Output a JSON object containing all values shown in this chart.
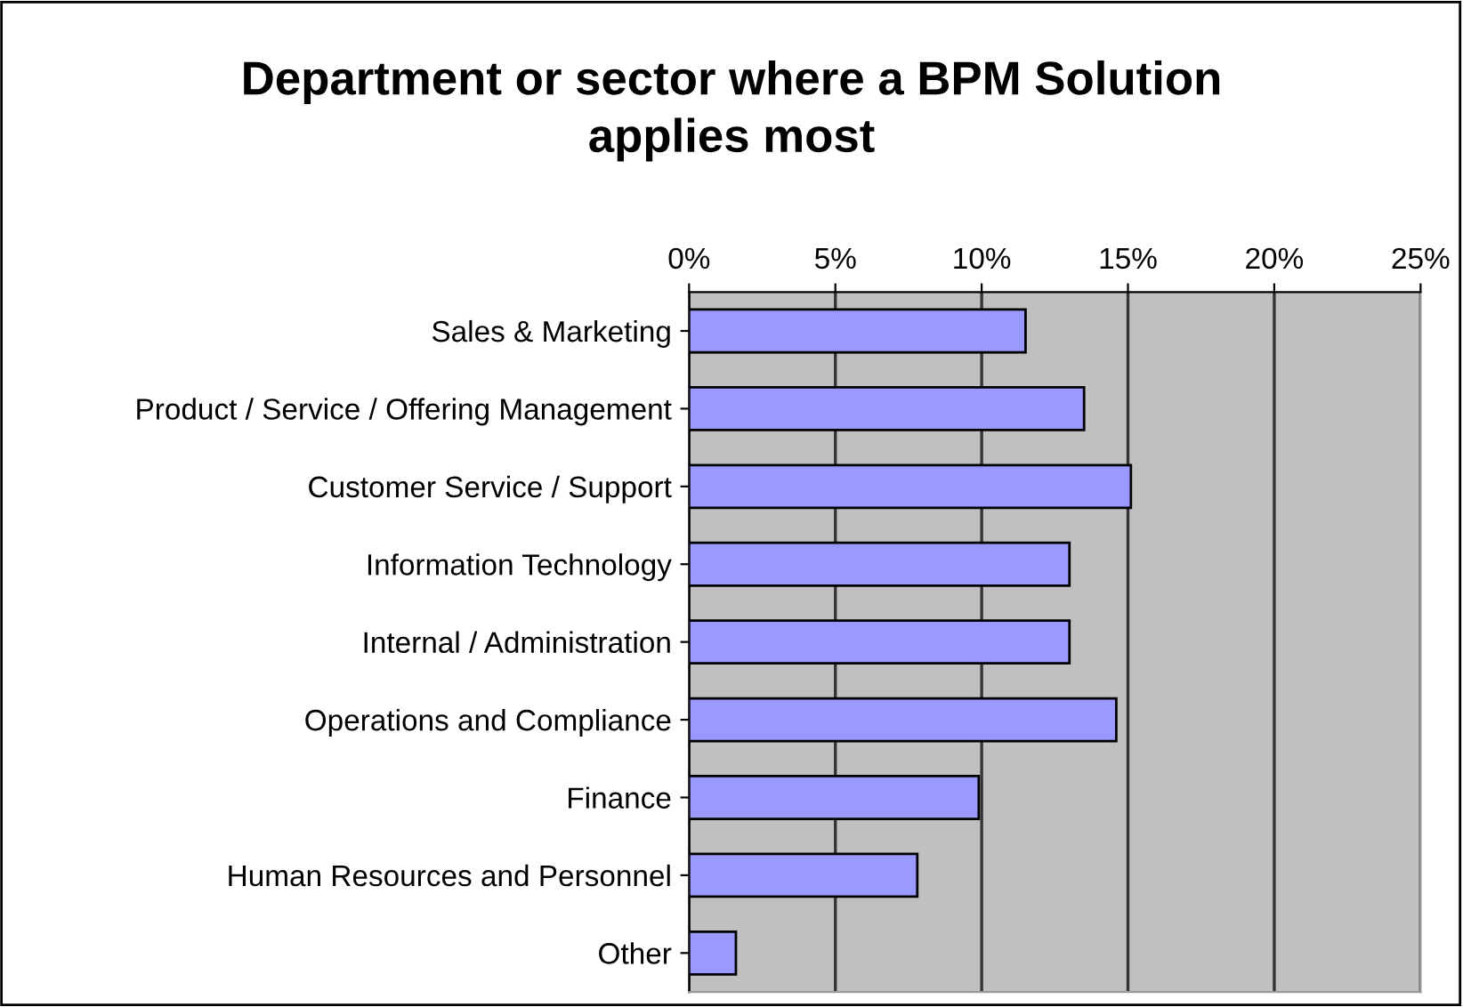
{
  "chart_data": {
    "type": "bar",
    "orientation": "horizontal",
    "title": "Department or sector where a BPM Solution\napplies most",
    "categories": [
      "Sales & Marketing",
      "Product / Service / Offering Management",
      "Customer Service / Support",
      "Information Technology",
      "Internal / Administration",
      "Operations and Compliance",
      "Finance",
      "Human Resources and Personnel",
      "Other"
    ],
    "values": [
      11.5,
      13.5,
      15.1,
      13.0,
      13.0,
      14.6,
      9.9,
      7.8,
      1.6
    ],
    "color": "#9999ff",
    "xlim": [
      0,
      25
    ],
    "xticks": [
      {
        "value": 0,
        "label": "0%"
      },
      {
        "value": 5,
        "label": "5%"
      },
      {
        "value": 10,
        "label": "10%"
      },
      {
        "value": 15,
        "label": "15%"
      },
      {
        "value": 20,
        "label": "20%"
      },
      {
        "value": 25,
        "label": "25%"
      }
    ],
    "grid": "x",
    "legend": false
  }
}
